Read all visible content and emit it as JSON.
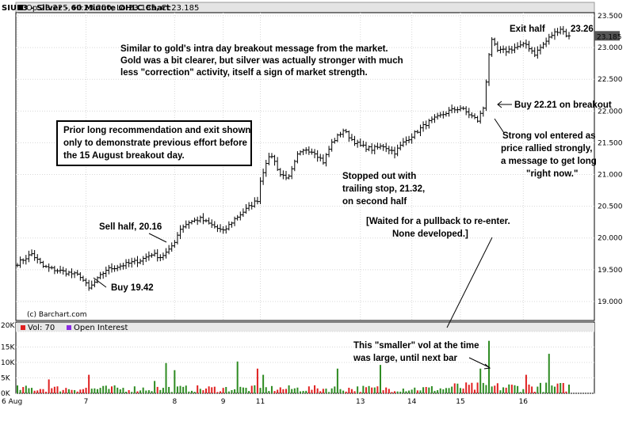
{
  "header": {
    "title": "SIU13 - Silver - 60 Minute OHLC Chart",
    "ohlc": "Op:23.225, Hi:23.250, Lo:23.185, Cl:23.185"
  },
  "colors": {
    "bar_color": "#000000",
    "vol_up": "#2e8b22",
    "vol_down": "#e02020",
    "last_price_bg": "#555555",
    "vol_swatch": "#e02020",
    "oi_swatch": "#8a2be2"
  },
  "chart_data": [
    {
      "type": "ohlc",
      "ylim": [
        18.7,
        23.55
      ],
      "yticks": [
        19.0,
        19.5,
        20.0,
        20.5,
        21.0,
        21.5,
        22.0,
        22.5,
        23.0,
        23.5
      ],
      "ytick_labels": [
        "19.000",
        "19.500",
        "20.000",
        "20.500",
        "21.000",
        "21.500",
        "22.000",
        "22.500",
        "23.000",
        "23.500"
      ],
      "x_labels": [
        "6 Aug",
        "7",
        "8",
        "9",
        "11",
        "13",
        "14",
        "15",
        "16"
      ],
      "x_label_bars": [
        0,
        24,
        55,
        72,
        85,
        120,
        138,
        155,
        177
      ],
      "last_price": 23.185,
      "last_price_label": "23.185",
      "watermark": "(c) Barchart.com",
      "close_path": [
        [
          0,
          19.6
        ],
        [
          5,
          19.75
        ],
        [
          9,
          19.55
        ],
        [
          13,
          19.5
        ],
        [
          18,
          19.45
        ],
        [
          22,
          19.4
        ],
        [
          25,
          19.2
        ],
        [
          28,
          19.35
        ],
        [
          31,
          19.5
        ],
        [
          35,
          19.55
        ],
        [
          39,
          19.6
        ],
        [
          43,
          19.65
        ],
        [
          47,
          19.75
        ],
        [
          50,
          19.7
        ],
        [
          53,
          19.8
        ],
        [
          55,
          19.95
        ],
        [
          57,
          20.15
        ],
        [
          60,
          20.25
        ],
        [
          64,
          20.3
        ],
        [
          68,
          20.2
        ],
        [
          72,
          20.1
        ],
        [
          76,
          20.3
        ],
        [
          80,
          20.45
        ],
        [
          84,
          20.6
        ],
        [
          85,
          20.9
        ],
        [
          87,
          21.2
        ],
        [
          89,
          21.3
        ],
        [
          92,
          21.0
        ],
        [
          95,
          20.95
        ],
        [
          98,
          21.3
        ],
        [
          101,
          21.4
        ],
        [
          104,
          21.35
        ],
        [
          107,
          21.2
        ],
        [
          110,
          21.5
        ],
        [
          112,
          21.6
        ],
        [
          114,
          21.7
        ],
        [
          117,
          21.55
        ],
        [
          120,
          21.45
        ],
        [
          124,
          21.4
        ],
        [
          128,
          21.45
        ],
        [
          132,
          21.35
        ],
        [
          135,
          21.5
        ],
        [
          139,
          21.65
        ],
        [
          143,
          21.8
        ],
        [
          147,
          21.9
        ],
        [
          151,
          22.0
        ],
        [
          155,
          22.05
        ],
        [
          158,
          21.95
        ],
        [
          161,
          21.85
        ],
        [
          163,
          22.05
        ],
        [
          165,
          22.9
        ],
        [
          166,
          23.1
        ],
        [
          168,
          22.95
        ],
        [
          171,
          22.95
        ],
        [
          174,
          23.0
        ],
        [
          178,
          23.05
        ],
        [
          181,
          22.9
        ],
        [
          184,
          23.05
        ],
        [
          187,
          23.2
        ],
        [
          190,
          23.3
        ],
        [
          192,
          23.2
        ],
        [
          193,
          23.185
        ]
      ]
    },
    {
      "type": "bar",
      "ylim": [
        0,
        20000
      ],
      "yticks": [
        0,
        5000,
        10000,
        15000,
        20000
      ],
      "ytick_labels": [
        "0K",
        "5K",
        "10K",
        "15K",
        "20K"
      ],
      "legend": [
        "Vol: 70",
        "Open Interest"
      ],
      "spikes": [
        [
          11,
          4500
        ],
        [
          25,
          6000
        ],
        [
          48,
          4000
        ],
        [
          52,
          9800
        ],
        [
          55,
          7500
        ],
        [
          77,
          10300
        ],
        [
          84,
          8000
        ],
        [
          86,
          6000
        ],
        [
          112,
          8000
        ],
        [
          127,
          9200
        ],
        [
          162,
          8000
        ],
        [
          165,
          17000
        ],
        [
          178,
          6000
        ],
        [
          186,
          12800
        ]
      ]
    }
  ],
  "annotations": {
    "intro": [
      "Similar to gold's intra day breakout message from the market.",
      "Gold was a bit clearer, but silver was actually stronger with much",
      "less \"correction\" activity, itself a sign of market strength."
    ],
    "prior": [
      "Prior long recommendation and exit shown",
      "only to demonstrate previous effort before",
      "the 15 August breakout day."
    ],
    "buy1": "Buy 19.42",
    "sell_half": "Sell half, 20.16",
    "stopped": [
      "Stopped out with",
      "trailing stop, 21.32,",
      "on second half"
    ],
    "waited": [
      "[Waited for a pullback to re-enter.",
      "None developed.]"
    ],
    "buy2": "Buy 22.21 on breakout",
    "strong_vol": [
      "Strong vol entered as",
      "price rallied strongly,",
      "a message to get long",
      "\"right now.\""
    ],
    "exit_half": "Exit half",
    "exit_price": "23.26",
    "smaller_vol": [
      "This \"smaller\" vol at the time",
      "was large, until next bar"
    ]
  }
}
